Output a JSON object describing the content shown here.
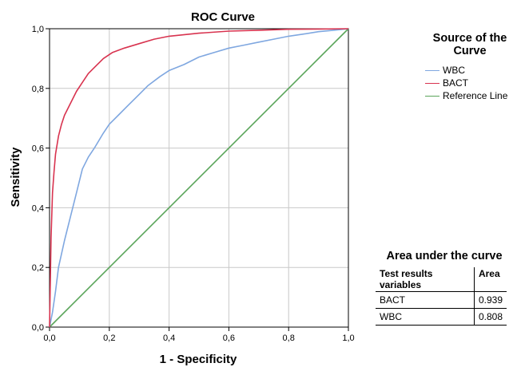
{
  "chart_data": {
    "type": "line",
    "title": "ROC Curve",
    "xlabel": "1 - Specificity",
    "ylabel": "Sensitivity",
    "xlim": [
      0,
      1
    ],
    "ylim": [
      0,
      1
    ],
    "xticks": [
      "0,0",
      "0,2",
      "0,4",
      "0,6",
      "0,8",
      "1,0"
    ],
    "yticks": [
      "0,0",
      "0,2",
      "0,4",
      "0,6",
      "0,8",
      "1,0"
    ],
    "grid": true,
    "legend_placement": "right",
    "legend_title": "Source of the Curve",
    "series": [
      {
        "name": "WBC",
        "color": "#7fa7e0",
        "x": [
          0.0,
          0.01,
          0.02,
          0.03,
          0.05,
          0.07,
          0.09,
          0.11,
          0.13,
          0.15,
          0.18,
          0.2,
          0.23,
          0.26,
          0.3,
          0.33,
          0.37,
          0.4,
          0.45,
          0.5,
          0.55,
          0.6,
          0.65,
          0.7,
          0.75,
          0.8,
          0.85,
          0.9,
          0.95,
          1.0
        ],
        "y": [
          0.0,
          0.05,
          0.12,
          0.2,
          0.29,
          0.37,
          0.45,
          0.53,
          0.57,
          0.6,
          0.65,
          0.68,
          0.71,
          0.74,
          0.78,
          0.81,
          0.84,
          0.86,
          0.88,
          0.905,
          0.92,
          0.935,
          0.945,
          0.955,
          0.965,
          0.975,
          0.982,
          0.99,
          0.995,
          1.0
        ]
      },
      {
        "name": "BACT",
        "color": "#d8334f",
        "x": [
          0.0,
          0.005,
          0.01,
          0.015,
          0.02,
          0.03,
          0.04,
          0.05,
          0.07,
          0.09,
          0.11,
          0.13,
          0.15,
          0.18,
          0.21,
          0.25,
          0.3,
          0.35,
          0.4,
          0.5,
          0.6,
          0.7,
          0.8,
          0.9,
          1.0
        ],
        "y": [
          0.0,
          0.3,
          0.45,
          0.52,
          0.58,
          0.64,
          0.68,
          0.71,
          0.75,
          0.79,
          0.82,
          0.85,
          0.87,
          0.9,
          0.92,
          0.935,
          0.95,
          0.965,
          0.975,
          0.985,
          0.992,
          0.995,
          0.998,
          0.999,
          1.0
        ]
      },
      {
        "name": "Reference Line",
        "color": "#5aa55a",
        "x": [
          0.0,
          1.0
        ],
        "y": [
          0.0,
          1.0
        ]
      }
    ]
  },
  "auc_table": {
    "title": "Area under the curve",
    "headers": [
      "Test results variables",
      "Area"
    ],
    "rows": [
      {
        "variable": "BACT",
        "area": "0.939"
      },
      {
        "variable": "WBC",
        "area": "0.808"
      }
    ]
  }
}
